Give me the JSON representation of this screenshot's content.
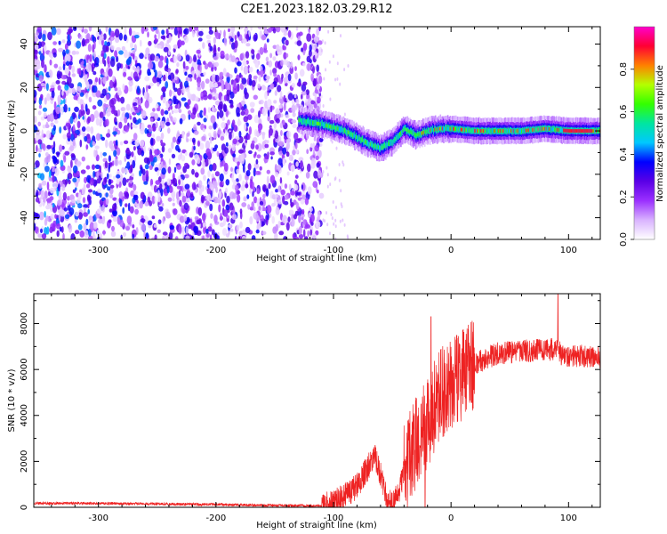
{
  "title": "C2E1.2023.182.03.29.R12",
  "chart_data": [
    {
      "type": "heatmap",
      "xlabel": "Height of straight line (km)",
      "ylabel": "Frequency (Hz)",
      "xlim": [
        -355,
        127
      ],
      "ylim": [
        -50,
        48
      ],
      "xticks": [
        -300,
        -200,
        -100,
        0,
        100
      ],
      "yticks": [
        -40,
        -20,
        0,
        20,
        40
      ],
      "grid": false,
      "colorbar": {
        "label": "Normalized spectral amplitude",
        "range": [
          0,
          1
        ],
        "ticks": [
          0.0,
          0.2,
          0.4,
          0.6,
          0.8
        ],
        "colors": [
          "#ffffff",
          "#d9b3ff",
          "#9b30ff",
          "#5a00e6",
          "#0000ff",
          "#00c8ff",
          "#00e6a0",
          "#33ff00",
          "#b4ff00",
          "#ff8000",
          "#ff0033",
          "#ff00cc"
        ]
      },
      "regions": [
        {
          "x_range": [
            -355,
            -110
          ],
          "freq_range": [
            -50,
            48
          ],
          "description_level": "scattered broadband noise",
          "typical_amplitude": 0.1
        },
        {
          "x_range": [
            -130,
            127
          ],
          "center_frequency_hz": 0,
          "typical_amplitude": 0.5,
          "peak_amplitude": 0.9
        }
      ],
      "band_center": {
        "x": [
          -130,
          -110,
          -90,
          -80,
          -70,
          -60,
          -50,
          -40,
          -30,
          -20,
          -10,
          0,
          20,
          40,
          60,
          80,
          100,
          127
        ],
        "freq": [
          5,
          3,
          0,
          -3,
          -6,
          -8,
          -5,
          1,
          -2,
          0,
          1,
          1,
          0,
          0,
          0,
          1,
          0,
          0
        ]
      }
    },
    {
      "type": "line",
      "xlabel": "Height of straight line (km)",
      "ylabel": "SNR (10 * v/v)",
      "xlim": [
        -355,
        127
      ],
      "ylim": [
        0,
        9300
      ],
      "xticks": [
        -300,
        -200,
        -100,
        0,
        100
      ],
      "yticks": [
        0,
        2000,
        4000,
        6000,
        8000
      ],
      "grid": false,
      "color": "#ee2222",
      "envelope": {
        "x": [
          -355,
          -300,
          -200,
          -150,
          -110,
          -100,
          -80,
          -70,
          -65,
          -60,
          -55,
          -50,
          -45,
          -40,
          -35,
          -30,
          -25,
          -20,
          -15,
          -10,
          0,
          10,
          20,
          30,
          40,
          60,
          80,
          90,
          95,
          100,
          127
        ],
        "y": [
          180,
          170,
          120,
          80,
          60,
          150,
          900,
          1800,
          2200,
          1400,
          500,
          150,
          500,
          1600,
          2200,
          2800,
          3200,
          3600,
          4300,
          4900,
          5300,
          5800,
          6200,
          6500,
          6700,
          6800,
          6850,
          6900,
          6600,
          6600,
          6550
        ]
      },
      "noise_amplitude": [
        {
          "x_range": [
            -355,
            -110
          ],
          "amplitude": 60
        },
        {
          "x_range": [
            -110,
            -40
          ],
          "amplitude": 600
        },
        {
          "x_range": [
            -40,
            20
          ],
          "amplitude": 2000
        },
        {
          "x_range": [
            20,
            127
          ],
          "amplitude": 500
        }
      ],
      "peaks": [
        {
          "x": -17,
          "y": 8300
        },
        {
          "x": 91,
          "y": 9300
        },
        {
          "x": -22,
          "y": 0
        }
      ]
    }
  ]
}
